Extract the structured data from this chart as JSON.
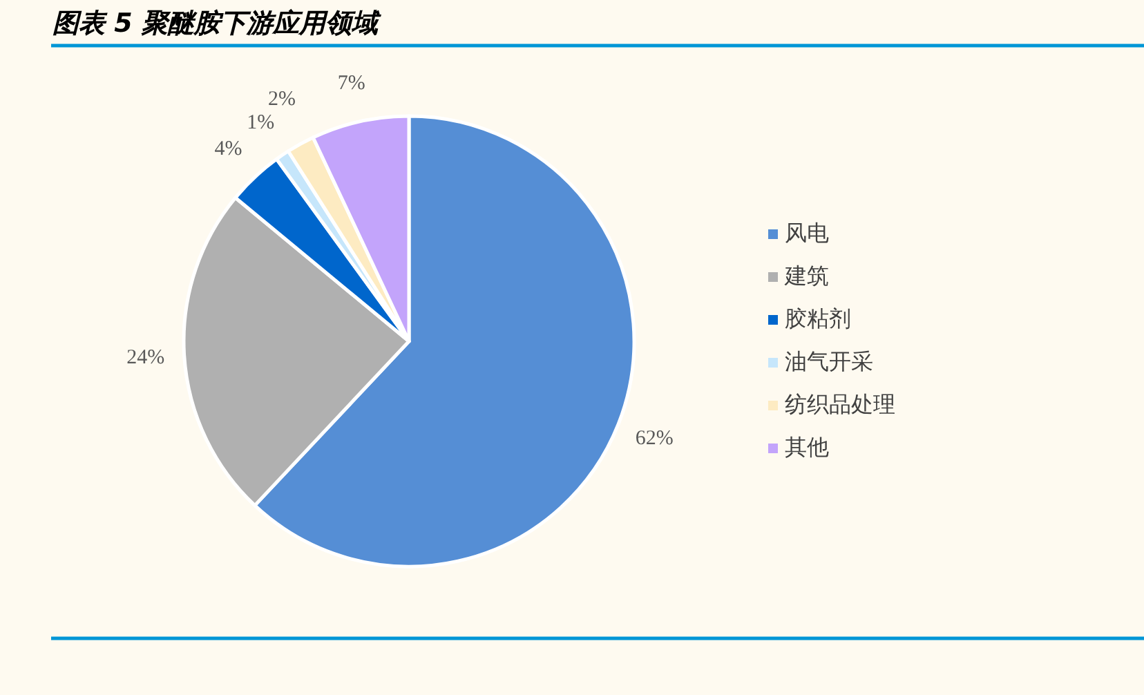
{
  "chart_data": {
    "type": "pie",
    "title": "图表 5 聚醚胺下游应用领域",
    "categories": [
      "风电",
      "建筑",
      "胶粘剂",
      "油气开采",
      "纺织品处理",
      "其他"
    ],
    "values": [
      62,
      24,
      4,
      1,
      2,
      7
    ],
    "colors": [
      "#558ed5",
      "#b0b0b0",
      "#0066cc",
      "#c6e6fb",
      "#fdebc2",
      "#c3a4fb"
    ],
    "value_labels": [
      "62%",
      "24%",
      "4%",
      "1%",
      "2%",
      "7%"
    ],
    "legend": "right"
  }
}
